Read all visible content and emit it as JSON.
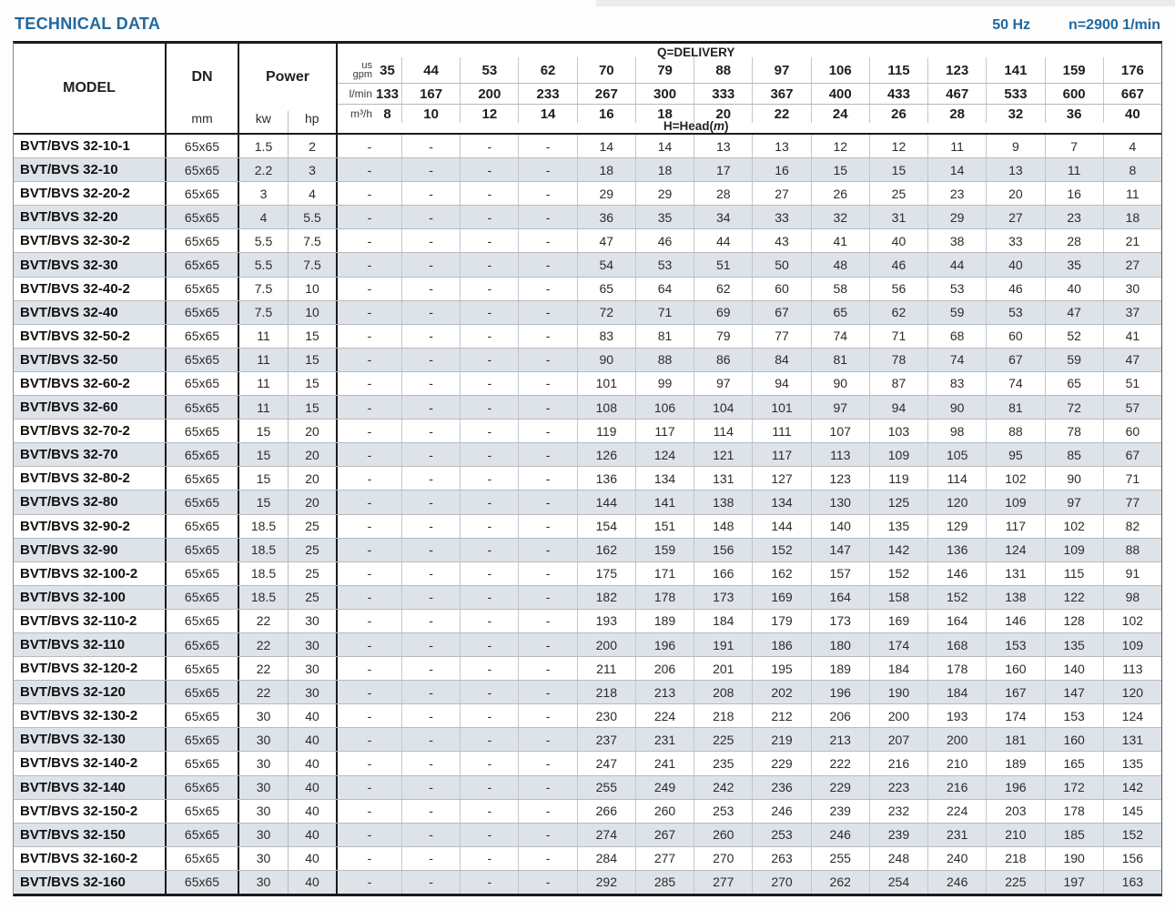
{
  "header": {
    "title": "TECHNICAL DATA",
    "frequency": "50 Hz",
    "speed": "n=2900 1/min"
  },
  "table": {
    "columns": {
      "model": "MODEL",
      "dn": "DN",
      "dn_unit": "mm",
      "power": "Power",
      "power_kw": "kw",
      "power_hp": "hp",
      "delivery_label": "Q=DELIVERY",
      "head_label_prefix": "H=Head(",
      "head_label_m": "m",
      "head_label_suffix": ")",
      "unit_gpm_top": "us",
      "unit_gpm_bottom": "gpm",
      "unit_lmin": "l/min",
      "unit_m3h": "m³/h"
    },
    "delivery": {
      "gpm": [
        35,
        44,
        53,
        62,
        70,
        79,
        88,
        97,
        106,
        115,
        123,
        141,
        159,
        176
      ],
      "lmin": [
        133,
        167,
        200,
        233,
        267,
        300,
        333,
        367,
        400,
        433,
        467,
        533,
        600,
        667
      ],
      "m3h": [
        8,
        10,
        12,
        14,
        16,
        18,
        20,
        22,
        24,
        26,
        28,
        32,
        36,
        40
      ]
    },
    "rows": [
      {
        "model": "BVT/BVS 32-10-1",
        "dn": "65x65",
        "kw": "1.5",
        "hp": "2",
        "head": [
          "-",
          "-",
          "-",
          "-",
          14,
          14,
          13,
          13,
          12,
          12,
          11,
          9,
          7,
          4
        ]
      },
      {
        "model": "BVT/BVS 32-10",
        "dn": "65x65",
        "kw": "2.2",
        "hp": "3",
        "head": [
          "-",
          "-",
          "-",
          "-",
          18,
          18,
          17,
          16,
          15,
          15,
          14,
          13,
          11,
          8
        ]
      },
      {
        "model": "BVT/BVS 32-20-2",
        "dn": "65x65",
        "kw": "3",
        "hp": "4",
        "head": [
          "-",
          "-",
          "-",
          "-",
          29,
          29,
          28,
          27,
          26,
          25,
          23,
          20,
          16,
          11
        ]
      },
      {
        "model": "BVT/BVS 32-20",
        "dn": "65x65",
        "kw": "4",
        "hp": "5.5",
        "head": [
          "-",
          "-",
          "-",
          "-",
          36,
          35,
          34,
          33,
          32,
          31,
          29,
          27,
          23,
          18
        ]
      },
      {
        "model": "BVT/BVS 32-30-2",
        "dn": "65x65",
        "kw": "5.5",
        "hp": "7.5",
        "head": [
          "-",
          "-",
          "-",
          "-",
          47,
          46,
          44,
          43,
          41,
          40,
          38,
          33,
          28,
          21
        ]
      },
      {
        "model": "BVT/BVS 32-30",
        "dn": "65x65",
        "kw": "5.5",
        "hp": "7.5",
        "head": [
          "-",
          "-",
          "-",
          "-",
          54,
          53,
          51,
          50,
          48,
          46,
          44,
          40,
          35,
          27
        ]
      },
      {
        "model": "BVT/BVS 32-40-2",
        "dn": "65x65",
        "kw": "7.5",
        "hp": "10",
        "head": [
          "-",
          "-",
          "-",
          "-",
          65,
          64,
          62,
          60,
          58,
          56,
          53,
          46,
          40,
          30
        ]
      },
      {
        "model": "BVT/BVS 32-40",
        "dn": "65x65",
        "kw": "7.5",
        "hp": "10",
        "head": [
          "-",
          "-",
          "-",
          "-",
          72,
          71,
          69,
          67,
          65,
          62,
          59,
          53,
          47,
          37
        ]
      },
      {
        "model": "BVT/BVS 32-50-2",
        "dn": "65x65",
        "kw": "11",
        "hp": "15",
        "head": [
          "-",
          "-",
          "-",
          "-",
          83,
          81,
          79,
          77,
          74,
          71,
          68,
          60,
          52,
          41
        ]
      },
      {
        "model": "BVT/BVS 32-50",
        "dn": "65x65",
        "kw": "11",
        "hp": "15",
        "head": [
          "-",
          "-",
          "-",
          "-",
          90,
          88,
          86,
          84,
          81,
          78,
          74,
          67,
          59,
          47
        ]
      },
      {
        "model": "BVT/BVS 32-60-2",
        "dn": "65x65",
        "kw": "11",
        "hp": "15",
        "head": [
          "-",
          "-",
          "-",
          "-",
          101,
          99,
          97,
          94,
          90,
          87,
          83,
          74,
          65,
          51
        ]
      },
      {
        "model": "BVT/BVS 32-60",
        "dn": "65x65",
        "kw": "11",
        "hp": "15",
        "head": [
          "-",
          "-",
          "-",
          "-",
          108,
          106,
          104,
          101,
          97,
          94,
          90,
          81,
          72,
          57
        ]
      },
      {
        "model": "BVT/BVS 32-70-2",
        "dn": "65x65",
        "kw": "15",
        "hp": "20",
        "head": [
          "-",
          "-",
          "-",
          "-",
          119,
          117,
          114,
          111,
          107,
          103,
          98,
          88,
          78,
          60
        ]
      },
      {
        "model": "BVT/BVS 32-70",
        "dn": "65x65",
        "kw": "15",
        "hp": "20",
        "head": [
          "-",
          "-",
          "-",
          "-",
          126,
          124,
          121,
          117,
          113,
          109,
          105,
          95,
          85,
          67
        ]
      },
      {
        "model": "BVT/BVS 32-80-2",
        "dn": "65x65",
        "kw": "15",
        "hp": "20",
        "head": [
          "-",
          "-",
          "-",
          "-",
          136,
          134,
          131,
          127,
          123,
          119,
          114,
          102,
          90,
          71
        ]
      },
      {
        "model": "BVT/BVS 32-80",
        "dn": "65x65",
        "kw": "15",
        "hp": "20",
        "head": [
          "-",
          "-",
          "-",
          "-",
          144,
          141,
          138,
          134,
          130,
          125,
          120,
          109,
          97,
          77
        ]
      },
      {
        "model": "BVT/BVS 32-90-2",
        "dn": "65x65",
        "kw": "18.5",
        "hp": "25",
        "head": [
          "-",
          "-",
          "-",
          "-",
          154,
          151,
          148,
          144,
          140,
          135,
          129,
          117,
          102,
          82
        ]
      },
      {
        "model": "BVT/BVS 32-90",
        "dn": "65x65",
        "kw": "18.5",
        "hp": "25",
        "head": [
          "-",
          "-",
          "-",
          "-",
          162,
          159,
          156,
          152,
          147,
          142,
          136,
          124,
          109,
          88
        ]
      },
      {
        "model": "BVT/BVS 32-100-2",
        "dn": "65x65",
        "kw": "18.5",
        "hp": "25",
        "head": [
          "-",
          "-",
          "-",
          "-",
          175,
          171,
          166,
          162,
          157,
          152,
          146,
          131,
          115,
          91
        ]
      },
      {
        "model": "BVT/BVS 32-100",
        "dn": "65x65",
        "kw": "18.5",
        "hp": "25",
        "head": [
          "-",
          "-",
          "-",
          "-",
          182,
          178,
          173,
          169,
          164,
          158,
          152,
          138,
          122,
          98
        ]
      },
      {
        "model": "BVT/BVS 32-110-2",
        "dn": "65x65",
        "kw": "22",
        "hp": "30",
        "head": [
          "-",
          "-",
          "-",
          "-",
          193,
          189,
          184,
          179,
          173,
          169,
          164,
          146,
          128,
          102
        ]
      },
      {
        "model": "BVT/BVS 32-110",
        "dn": "65x65",
        "kw": "22",
        "hp": "30",
        "head": [
          "-",
          "-",
          "-",
          "-",
          200,
          196,
          191,
          186,
          180,
          174,
          168,
          153,
          135,
          109
        ]
      },
      {
        "model": "BVT/BVS 32-120-2",
        "dn": "65x65",
        "kw": "22",
        "hp": "30",
        "head": [
          "-",
          "-",
          "-",
          "-",
          211,
          206,
          201,
          195,
          189,
          184,
          178,
          160,
          140,
          113
        ]
      },
      {
        "model": "BVT/BVS 32-120",
        "dn": "65x65",
        "kw": "22",
        "hp": "30",
        "head": [
          "-",
          "-",
          "-",
          "-",
          218,
          213,
          208,
          202,
          196,
          190,
          184,
          167,
          147,
          120
        ]
      },
      {
        "model": "BVT/BVS 32-130-2",
        "dn": "65x65",
        "kw": "30",
        "hp": "40",
        "head": [
          "-",
          "-",
          "-",
          "-",
          230,
          224,
          218,
          212,
          206,
          200,
          193,
          174,
          153,
          124
        ]
      },
      {
        "model": "BVT/BVS 32-130",
        "dn": "65x65",
        "kw": "30",
        "hp": "40",
        "head": [
          "-",
          "-",
          "-",
          "-",
          237,
          231,
          225,
          219,
          213,
          207,
          200,
          181,
          160,
          131
        ]
      },
      {
        "model": "BVT/BVS 32-140-2",
        "dn": "65x65",
        "kw": "30",
        "hp": "40",
        "head": [
          "-",
          "-",
          "-",
          "-",
          247,
          241,
          235,
          229,
          222,
          216,
          210,
          189,
          165,
          135
        ]
      },
      {
        "model": "BVT/BVS 32-140",
        "dn": "65x65",
        "kw": "30",
        "hp": "40",
        "head": [
          "-",
          "-",
          "-",
          "-",
          255,
          249,
          242,
          236,
          229,
          223,
          216,
          196,
          172,
          142
        ]
      },
      {
        "model": "BVT/BVS 32-150-2",
        "dn": "65x65",
        "kw": "30",
        "hp": "40",
        "head": [
          "-",
          "-",
          "-",
          "-",
          266,
          260,
          253,
          246,
          239,
          232,
          224,
          203,
          178,
          145
        ]
      },
      {
        "model": "BVT/BVS 32-150",
        "dn": "65x65",
        "kw": "30",
        "hp": "40",
        "head": [
          "-",
          "-",
          "-",
          "-",
          274,
          267,
          260,
          253,
          246,
          239,
          231,
          210,
          185,
          152
        ]
      },
      {
        "model": "BVT/BVS 32-160-2",
        "dn": "65x65",
        "kw": "30",
        "hp": "40",
        "head": [
          "-",
          "-",
          "-",
          "-",
          284,
          277,
          270,
          263,
          255,
          248,
          240,
          218,
          190,
          156
        ]
      },
      {
        "model": "BVT/BVS 32-160",
        "dn": "65x65",
        "kw": "30",
        "hp": "40",
        "head": [
          "-",
          "-",
          "-",
          "-",
          292,
          285,
          277,
          270,
          262,
          254,
          246,
          225,
          197,
          163
        ]
      }
    ],
    "colors": {
      "accent_blue": "#21689e",
      "row_alt": "#dde3e8",
      "border_dark": "#1a1a1a"
    }
  }
}
